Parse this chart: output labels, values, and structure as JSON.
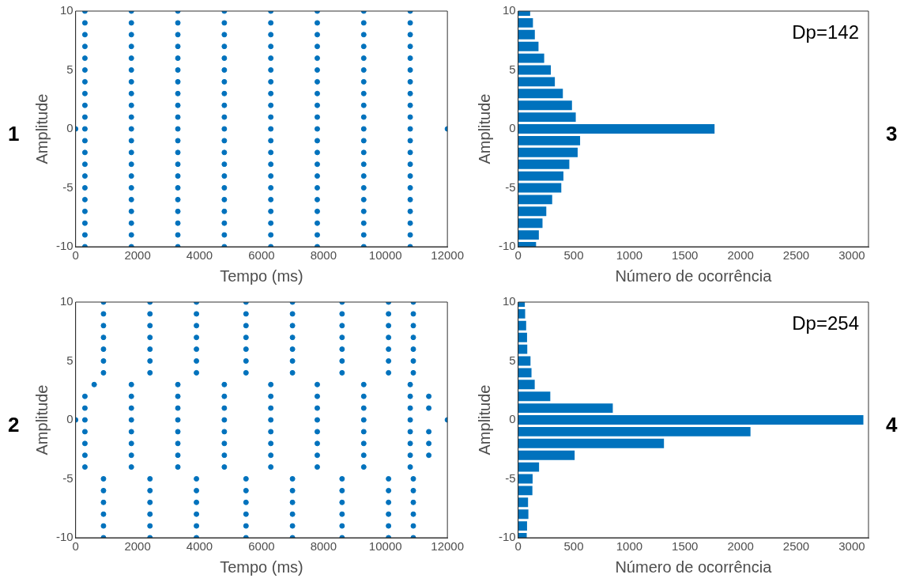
{
  "chart_data": [
    {
      "type": "scatter",
      "xlabel": "Tempo (ms)",
      "ylabel": "Amplitude",
      "color": "#0072bd",
      "marker": "circle",
      "xlim": [
        0,
        12000
      ],
      "xticks": [
        0,
        2000,
        4000,
        6000,
        8000,
        10000,
        12000
      ],
      "ylim": [
        -10,
        10
      ],
      "yticks": [
        -10,
        -5,
        0,
        5,
        10
      ],
      "annotations": [
        "1"
      ],
      "x": [
        300,
        1800,
        3300,
        4800,
        6300,
        7800,
        9300,
        10800,
        300,
        1800,
        3300,
        4800,
        6300,
        7800,
        9300,
        10800,
        300,
        1800,
        3300,
        4800,
        6300,
        7800,
        9300,
        10800,
        300,
        1800,
        3300,
        4800,
        6300,
        7800,
        9300,
        10800,
        300,
        1800,
        3300,
        4800,
        6300,
        7800,
        9300,
        10800,
        300,
        1800,
        3300,
        4800,
        6300,
        7800,
        9300,
        10800,
        300,
        1800,
        3300,
        4800,
        6300,
        7800,
        9300,
        10800,
        300,
        1800,
        3300,
        4800,
        6300,
        7800,
        9300,
        10800,
        300,
        1800,
        3300,
        4800,
        6300,
        7800,
        9300,
        10800,
        300,
        1800,
        3300,
        4800,
        6300,
        7800,
        9300,
        10800,
        0,
        300,
        1800,
        3300,
        4800,
        6300,
        7800,
        9300,
        10800,
        12000,
        300,
        1800,
        3300,
        4800,
        6300,
        7800,
        9300,
        10800,
        300,
        1800,
        3300,
        4800,
        6300,
        7800,
        9300,
        10800,
        300,
        1800,
        3300,
        4800,
        6300,
        7800,
        9300,
        10800,
        300,
        1800,
        3300,
        4800,
        6300,
        7800,
        9300,
        10800,
        300,
        1800,
        3300,
        4800,
        6300,
        7800,
        9300,
        10800,
        300,
        1800,
        3300,
        4800,
        6300,
        7800,
        9300,
        10800,
        300,
        1800,
        3300,
        4800,
        6300,
        7800,
        9300,
        10800,
        300,
        1800,
        3300,
        4800,
        6300,
        7800,
        9300,
        10800,
        300,
        1800,
        3300,
        4800,
        6300,
        7800,
        9300,
        10800,
        300,
        1800,
        3300,
        4800,
        6300,
        7800,
        9300,
        10800
      ],
      "values": [
        10,
        10,
        10,
        10,
        10,
        10,
        10,
        10,
        9,
        9,
        9,
        9,
        9,
        9,
        9,
        9,
        8,
        8,
        8,
        8,
        8,
        8,
        8,
        8,
        7,
        7,
        7,
        7,
        7,
        7,
        7,
        7,
        6,
        6,
        6,
        6,
        6,
        6,
        6,
        6,
        5,
        5,
        5,
        5,
        5,
        5,
        5,
        5,
        4,
        4,
        4,
        4,
        4,
        4,
        4,
        4,
        3,
        3,
        3,
        3,
        3,
        3,
        3,
        3,
        2,
        2,
        2,
        2,
        2,
        2,
        2,
        2,
        1,
        1,
        1,
        1,
        1,
        1,
        1,
        1,
        0,
        0,
        0,
        0,
        0,
        0,
        0,
        0,
        0,
        0,
        -1,
        -1,
        -1,
        -1,
        -1,
        -1,
        -1,
        -1,
        -2,
        -2,
        -2,
        -2,
        -2,
        -2,
        -2,
        -2,
        -3,
        -3,
        -3,
        -3,
        -3,
        -3,
        -3,
        -3,
        -4,
        -4,
        -4,
        -4,
        -4,
        -4,
        -4,
        -4,
        -5,
        -5,
        -5,
        -5,
        -5,
        -5,
        -5,
        -5,
        -6,
        -6,
        -6,
        -6,
        -6,
        -6,
        -6,
        -6,
        -7,
        -7,
        -7,
        -7,
        -7,
        -7,
        -7,
        -7,
        -8,
        -8,
        -8,
        -8,
        -8,
        -8,
        -8,
        -8,
        -9,
        -9,
        -9,
        -9,
        -9,
        -9,
        -9,
        -9,
        -10,
        -10,
        -10,
        -10,
        -10,
        -10,
        -10,
        -10
      ]
    },
    {
      "type": "bar",
      "orientation": "horizontal",
      "xlabel": "Número de ocorrência",
      "ylabel": "Amplitude",
      "color": "#0072bd",
      "xlim": [
        0,
        3150
      ],
      "xticks": [
        0,
        500,
        1000,
        1500,
        2000,
        2500,
        3000
      ],
      "ylim": [
        -10,
        10
      ],
      "yticks": [
        -10,
        -5,
        0,
        5,
        10
      ],
      "annotations": [
        "Dp=142",
        "3"
      ],
      "x": [
        10,
        9,
        8,
        7,
        6,
        5,
        4,
        3,
        2,
        1,
        0,
        -1,
        -2,
        -3,
        -4,
        -5,
        -6,
        -7,
        -8,
        -9,
        -10
      ],
      "values": [
        108,
        133,
        150,
        183,
        234,
        294,
        330,
        402,
        484,
        518,
        1766,
        557,
        535,
        460,
        407,
        388,
        306,
        253,
        219,
        186,
        161
      ]
    },
    {
      "type": "scatter",
      "xlabel": "Tempo (ms)",
      "ylabel": "Amplitude",
      "color": "#0072bd",
      "marker": "circle",
      "xlim": [
        0,
        12000
      ],
      "xticks": [
        0,
        2000,
        4000,
        6000,
        8000,
        10000,
        12000
      ],
      "ylim": [
        -10,
        10
      ],
      "yticks": [
        -10,
        -5,
        0,
        5,
        10
      ],
      "annotations": [
        "2"
      ],
      "x": [
        900,
        2400,
        3900,
        5500,
        7000,
        8600,
        10100,
        10900,
        900,
        2400,
        3900,
        5500,
        7000,
        8600,
        10100,
        10900,
        900,
        2400,
        3900,
        5500,
        7000,
        8600,
        10100,
        10900,
        900,
        2400,
        3900,
        5500,
        7000,
        8600,
        10100,
        10900,
        900,
        2400,
        3900,
        5500,
        7000,
        8600,
        10100,
        10900,
        900,
        2400,
        3900,
        5500,
        7000,
        8600,
        10100,
        10900,
        900,
        2400,
        3900,
        5500,
        7000,
        8600,
        10100,
        10900,
        600,
        1800,
        3300,
        4800,
        6300,
        7800,
        9300,
        10800,
        300,
        1800,
        3300,
        4800,
        6300,
        7800,
        9300,
        10800,
        11400,
        300,
        1800,
        3300,
        4800,
        6300,
        7800,
        9300,
        10800,
        11400,
        0,
        300,
        1800,
        3300,
        4800,
        6300,
        7800,
        9300,
        10800,
        12000,
        300,
        1800,
        3300,
        4800,
        6300,
        7800,
        9300,
        10800,
        11400,
        300,
        1800,
        3300,
        4800,
        6300,
        7800,
        9300,
        10800,
        11400,
        300,
        1800,
        3300,
        4800,
        6300,
        7800,
        9300,
        10800,
        11400,
        300,
        1800,
        3300,
        4800,
        6300,
        7800,
        9300,
        10800,
        900,
        2400,
        3900,
        5500,
        7000,
        8600,
        10100,
        10900,
        900,
        2400,
        3900,
        5500,
        7000,
        8600,
        10100,
        10900,
        900,
        2400,
        3900,
        5500,
        7000,
        8600,
        10100,
        10900,
        900,
        2400,
        3900,
        5500,
        7000,
        8600,
        10100,
        10900,
        900,
        2400,
        3900,
        5500,
        7000,
        8600,
        10100,
        10900,
        900,
        2400,
        3900,
        5500,
        7000,
        8600,
        10100,
        10900
      ],
      "values": [
        10,
        10,
        10,
        10,
        10,
        10,
        10,
        10,
        9,
        9,
        9,
        9,
        9,
        9,
        9,
        9,
        8,
        8,
        8,
        8,
        8,
        8,
        8,
        8,
        7,
        7,
        7,
        7,
        7,
        7,
        7,
        7,
        6,
        6,
        6,
        6,
        6,
        6,
        6,
        6,
        5,
        5,
        5,
        5,
        5,
        5,
        5,
        5,
        4,
        4,
        4,
        4,
        4,
        4,
        4,
        4,
        3,
        3,
        3,
        3,
        3,
        3,
        3,
        3,
        2,
        2,
        2,
        2,
        2,
        2,
        2,
        2,
        2,
        1,
        1,
        1,
        1,
        1,
        1,
        1,
        1,
        1,
        0,
        0,
        0,
        0,
        0,
        0,
        0,
        0,
        0,
        0,
        -1,
        -1,
        -1,
        -1,
        -1,
        -1,
        -1,
        -1,
        -1,
        -2,
        -2,
        -2,
        -2,
        -2,
        -2,
        -2,
        -2,
        -2,
        -3,
        -3,
        -3,
        -3,
        -3,
        -3,
        -3,
        -3,
        -3,
        -4,
        -4,
        -4,
        -4,
        -4,
        -4,
        -4,
        -4,
        -5,
        -5,
        -5,
        -5,
        -5,
        -5,
        -5,
        -5,
        -6,
        -6,
        -6,
        -6,
        -6,
        -6,
        -6,
        -6,
        -7,
        -7,
        -7,
        -7,
        -7,
        -7,
        -7,
        -7,
        -8,
        -8,
        -8,
        -8,
        -8,
        -8,
        -8,
        -8,
        -9,
        -9,
        -9,
        -9,
        -9,
        -9,
        -9,
        -9,
        -10,
        -10,
        -10,
        -10,
        -10,
        -10,
        -10,
        -10
      ]
    },
    {
      "type": "bar",
      "orientation": "horizontal",
      "xlabel": "Número de ocorrência",
      "ylabel": "Amplitude",
      "color": "#0072bd",
      "xlim": [
        0,
        3150
      ],
      "xticks": [
        0,
        500,
        1000,
        1500,
        2000,
        2500,
        3000
      ],
      "ylim": [
        -10,
        10
      ],
      "yticks": [
        -10,
        -5,
        0,
        5,
        10
      ],
      "annotations": [
        "Dp=254",
        "4"
      ],
      "x": [
        10,
        9,
        8,
        7,
        6,
        5,
        4,
        3,
        2,
        1,
        0,
        -1,
        -2,
        -3,
        -4,
        -5,
        -6,
        -7,
        -8,
        -9,
        -10
      ],
      "values": [
        60,
        63,
        72,
        80,
        82,
        111,
        120,
        149,
        289,
        851,
        3104,
        2089,
        1311,
        508,
        188,
        130,
        128,
        89,
        92,
        80,
        77
      ]
    }
  ]
}
